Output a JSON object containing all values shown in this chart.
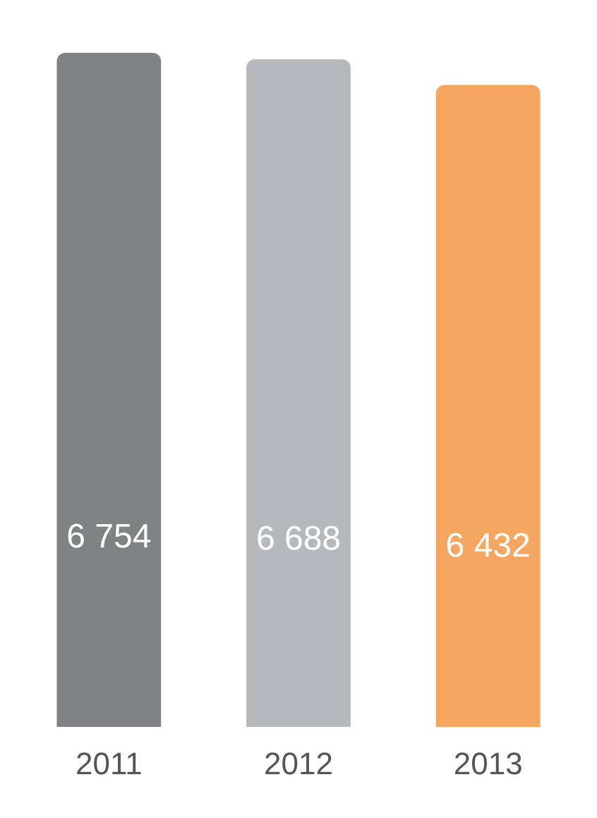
{
  "chart_data": {
    "type": "bar",
    "categories": [
      "2011",
      "2012",
      "2013"
    ],
    "values": [
      6754,
      6688,
      6432
    ],
    "colors": [
      "#808285",
      "#b5b8bc",
      "#f5a660"
    ],
    "value_labels": [
      "6 754",
      "6 688",
      "6 432"
    ],
    "grid": false,
    "legend": false,
    "tick_labels": "x"
  }
}
